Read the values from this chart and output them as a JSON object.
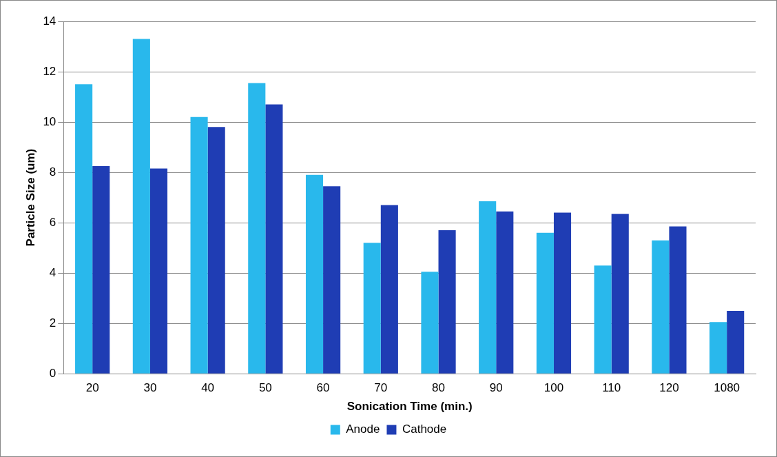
{
  "chart_data": {
    "type": "bar",
    "xlabel": "Sonication Time (min.)",
    "ylabel": "Particle Size (um)",
    "categories": [
      "20",
      "30",
      "40",
      "50",
      "60",
      "70",
      "80",
      "90",
      "100",
      "110",
      "120",
      "1080"
    ],
    "series": [
      {
        "name": "Anode",
        "color": "#29b8ec",
        "values": [
          11.5,
          13.3,
          10.2,
          11.55,
          7.9,
          5.2,
          4.05,
          6.85,
          5.6,
          4.3,
          5.3,
          2.05
        ]
      },
      {
        "name": "Cathode",
        "color": "#1f3db4",
        "values": [
          8.25,
          8.15,
          9.8,
          10.7,
          7.45,
          6.7,
          5.7,
          6.45,
          6.4,
          6.35,
          5.85,
          2.5
        ]
      }
    ],
    "ylim": [
      0,
      14
    ],
    "yticks": [
      0,
      2,
      4,
      6,
      8,
      10,
      12,
      14
    ],
    "grid": "y",
    "legend": "bottom"
  }
}
